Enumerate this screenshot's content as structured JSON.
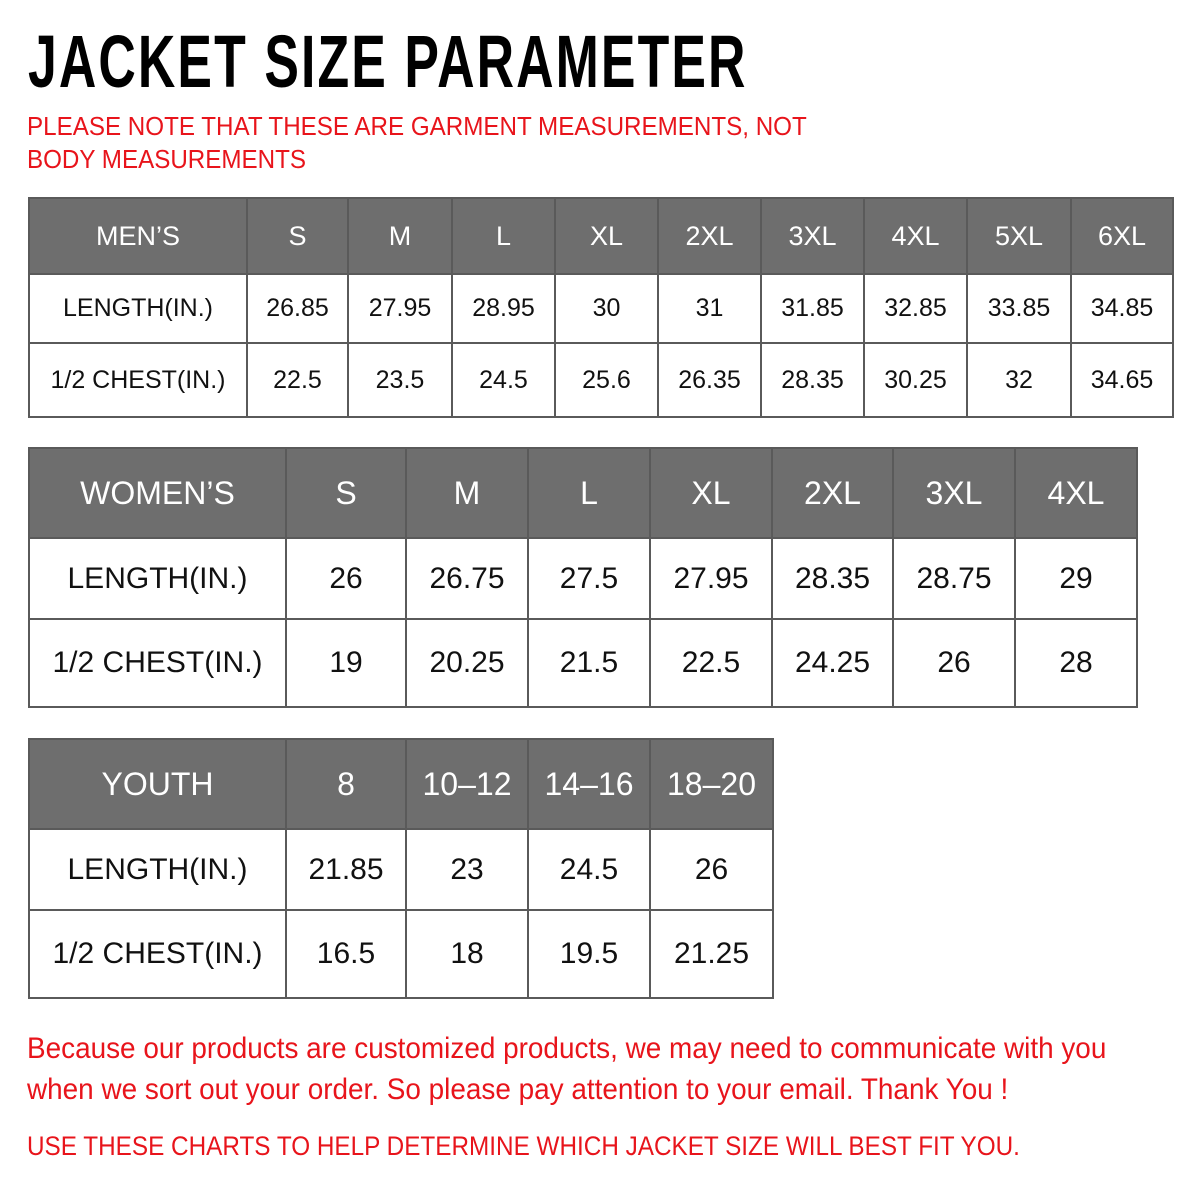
{
  "title": "JACKET SIZE PARAMETER",
  "note": "PLEASE NOTE THAT THESE ARE GARMENT MEASUREMENTS, NOT BODY MEASUREMENTS",
  "colors": {
    "header_bg": "#6e6e6e",
    "accent_red": "#e8141b"
  },
  "tables": {
    "men": {
      "header": [
        "MEN’S",
        "S",
        "M",
        "L",
        "XL",
        "2XL",
        "3XL",
        "4XL",
        "5XL",
        "6XL"
      ],
      "rows": [
        [
          "LENGTH(IN.)",
          "26.85",
          "27.95",
          "28.95",
          "30",
          "31",
          "31.85",
          "32.85",
          "33.85",
          "34.85"
        ],
        [
          "1/2 CHEST(IN.)",
          "22.5",
          "23.5",
          "24.5",
          "25.6",
          "26.35",
          "28.35",
          "30.25",
          "32",
          "34.65"
        ]
      ]
    },
    "women": {
      "header": [
        "WOMEN’S",
        "S",
        "M",
        "L",
        "XL",
        "2XL",
        "3XL",
        "4XL"
      ],
      "rows": [
        [
          "LENGTH(IN.)",
          "26",
          "26.75",
          "27.5",
          "27.95",
          "28.35",
          "28.75",
          "29"
        ],
        [
          "1/2 CHEST(IN.)",
          "19",
          "20.25",
          "21.5",
          "22.5",
          "24.25",
          "26",
          "28"
        ]
      ]
    },
    "youth": {
      "header": [
        "YOUTH",
        "8",
        "10–12",
        "14–16",
        "18–20"
      ],
      "rows": [
        [
          "LENGTH(IN.)",
          "21.85",
          "23",
          "24.5",
          "26"
        ],
        [
          "1/2 CHEST(IN.)",
          "16.5",
          "18",
          "19.5",
          "21.25"
        ]
      ]
    }
  },
  "footer": {
    "message": "Because our products are customized products, we may need to communicate with you when we sort out your order. So please pay attention to your email. Thank You !",
    "hint": "USE THESE CHARTS TO HELP DETERMINE WHICH JACKET SIZE WILL BEST FIT YOU."
  }
}
